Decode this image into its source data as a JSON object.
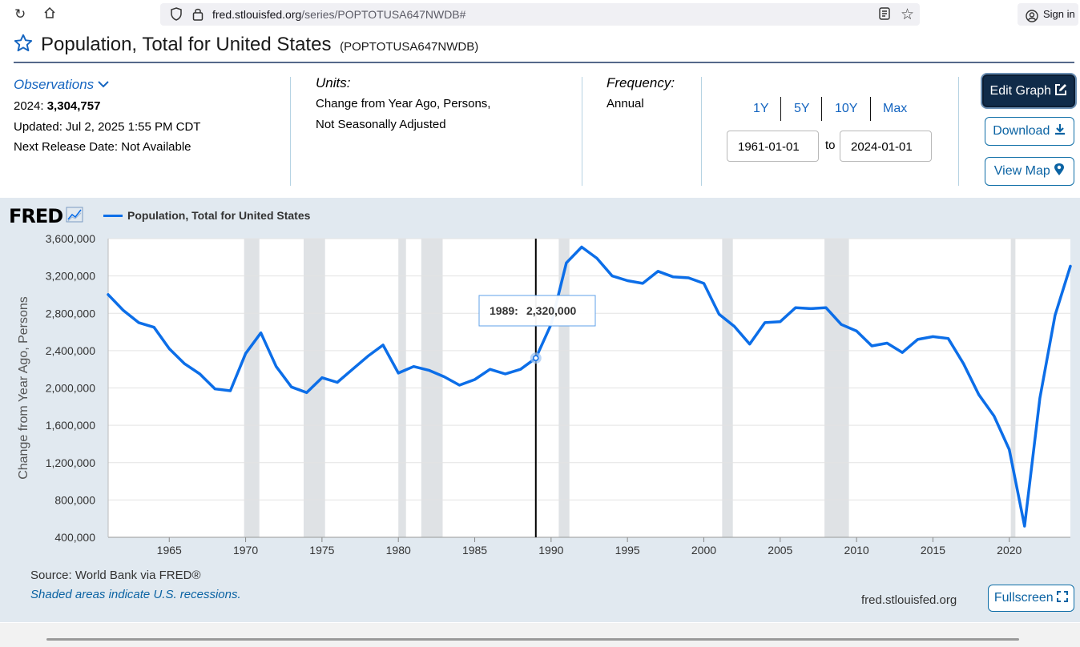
{
  "browser": {
    "url_host": "fred.stlouisfed.org",
    "url_path": "/series/POPTOTUSA647NWDB#",
    "signin_label": "Sign in"
  },
  "header": {
    "title": "Population, Total for United States",
    "series_id": "(POPTOTUSA647NWDB)"
  },
  "observations": {
    "label": "Observations",
    "latest_year": "2024:",
    "latest_value": "3,304,757",
    "updated": "Updated: Jul 2, 2025 1:55 PM CDT",
    "next_release": "Next Release Date: Not Available"
  },
  "units": {
    "label": "Units:",
    "line1": "Change from Year Ago, Persons,",
    "line2": "Not Seasonally Adjusted"
  },
  "frequency": {
    "label": "Frequency:",
    "value": "Annual"
  },
  "range": {
    "buttons": [
      "1Y",
      "5Y",
      "10Y",
      "Max"
    ],
    "start": "1961-01-01",
    "to": "to",
    "end": "2024-01-01"
  },
  "actions": {
    "edit_graph": "Edit Graph",
    "download": "Download",
    "view_map": "View Map"
  },
  "graph": {
    "logo": "FRED",
    "legend": "Population, Total for United States",
    "source": "Source: World Bank via FRED®",
    "recession_note": "Shaded areas indicate U.S. recessions.",
    "site": "fred.stlouisfed.org",
    "fullscreen": "Fullscreen"
  },
  "colors": {
    "series": "#0c6ee8",
    "recession": "#dfe2e5",
    "link": "#0b63a3",
    "panel": "#e1e9f0"
  },
  "chart_data": {
    "type": "line",
    "ylabel": "Change from Year Ago, Persons",
    "xlabel": "",
    "ylim": [
      400000,
      3600000
    ],
    "xlim": [
      1961,
      2024
    ],
    "y_ticks": [
      400000,
      800000,
      1200000,
      1600000,
      2000000,
      2400000,
      2800000,
      3200000,
      3600000
    ],
    "y_tick_labels": [
      "400,000",
      "800,000",
      "1,200,000",
      "1,600,000",
      "2,000,000",
      "2,400,000",
      "2,800,000",
      "3,200,000",
      "3,600,000"
    ],
    "x_ticks": [
      1965,
      1970,
      1975,
      1980,
      1985,
      1990,
      1995,
      2000,
      2005,
      2010,
      2015,
      2020
    ],
    "recessions": [
      [
        1969.9,
        1970.9
      ],
      [
        1973.8,
        1975.2
      ],
      [
        1980.0,
        1980.5
      ],
      [
        1981.5,
        1982.9
      ],
      [
        1990.5,
        1991.2
      ],
      [
        2001.2,
        2001.9
      ],
      [
        2007.9,
        2009.5
      ],
      [
        2020.1,
        2020.4
      ]
    ],
    "series": [
      {
        "name": "Population, Total for United States",
        "x": [
          1961,
          1962,
          1963,
          1964,
          1965,
          1966,
          1967,
          1968,
          1969,
          1970,
          1971,
          1972,
          1973,
          1974,
          1975,
          1976,
          1977,
          1978,
          1979,
          1980,
          1981,
          1982,
          1983,
          1984,
          1985,
          1986,
          1987,
          1988,
          1989,
          1990,
          1991,
          1992,
          1993,
          1994,
          1995,
          1996,
          1997,
          1998,
          1999,
          2000,
          2001,
          2002,
          2003,
          2004,
          2005,
          2006,
          2007,
          2008,
          2009,
          2010,
          2011,
          2012,
          2013,
          2014,
          2015,
          2016,
          2017,
          2018,
          2019,
          2020,
          2021,
          2022,
          2023,
          2024
        ],
        "values": [
          3000000,
          2830000,
          2700000,
          2650000,
          2420000,
          2260000,
          2150000,
          1990000,
          1970000,
          2370000,
          2590000,
          2230000,
          2010000,
          1950000,
          2110000,
          2060000,
          2200000,
          2340000,
          2460000,
          2160000,
          2230000,
          2190000,
          2120000,
          2030000,
          2090000,
          2200000,
          2150000,
          2200000,
          2320000,
          2680000,
          3340000,
          3510000,
          3390000,
          3200000,
          3150000,
          3120000,
          3250000,
          3190000,
          3180000,
          3120000,
          2790000,
          2660000,
          2470000,
          2700000,
          2710000,
          2860000,
          2850000,
          2860000,
          2680000,
          2610000,
          2450000,
          2480000,
          2380000,
          2520000,
          2550000,
          2530000,
          2260000,
          1930000,
          1700000,
          1340000,
          520000,
          1890000,
          2780000,
          3304757
        ]
      }
    ],
    "tooltip": {
      "label": "1989:",
      "value": "2,320,000",
      "year": 1989,
      "point_value": 2320000
    }
  }
}
